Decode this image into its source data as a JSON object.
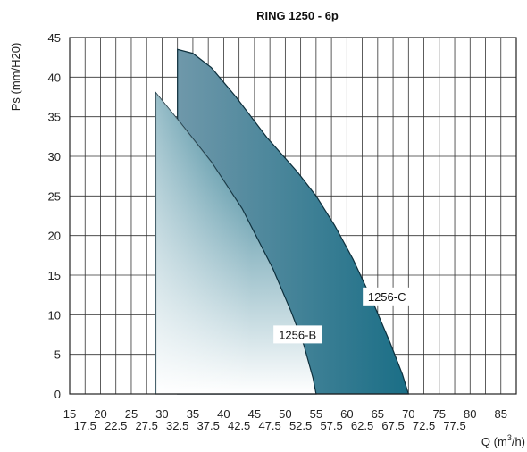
{
  "chart_data": {
    "type": "area",
    "title": "RING 1250 - 6p",
    "xlabel": "Q (m3/h)",
    "xlabel_parts": {
      "prefix": "Q (m",
      "sup": "3",
      "suffix": "/h)"
    },
    "ylabel": "Ps (mm/H20)",
    "xlim": [
      15,
      87.5
    ],
    "ylim": [
      0,
      45
    ],
    "x_ticks_major": [
      "15",
      "20",
      "25",
      "30",
      "35",
      "40",
      "45",
      "50",
      "55",
      "60",
      "65",
      "70",
      "75",
      "80",
      "85"
    ],
    "x_ticks_minor": [
      "17.5",
      "22.5",
      "27.5",
      "32.5",
      "37.5",
      "42.5",
      "47.5",
      "52.5",
      "57.5",
      "62.5",
      "67.5",
      "72.5",
      "77.5"
    ],
    "y_ticks": [
      "0",
      "5",
      "10",
      "15",
      "20",
      "25",
      "30",
      "35",
      "40",
      "45"
    ],
    "grid": true,
    "series": [
      {
        "name": "1256-B",
        "x_min": 29,
        "points": [
          [
            29,
            38
          ],
          [
            33,
            34.2
          ],
          [
            38,
            29.3
          ],
          [
            43,
            23.4
          ],
          [
            48,
            15.8
          ],
          [
            51,
            10.3
          ],
          [
            53,
            6.2
          ],
          [
            54.5,
            2.0
          ],
          [
            55,
            0
          ]
        ],
        "label_at": [
          52,
          7.4
        ],
        "fill_top": "#1a6e86",
        "fill_bottom": "#ffffff"
      },
      {
        "name": "1256-C",
        "x_min": 32.5,
        "points": [
          [
            32.5,
            43.5
          ],
          [
            35,
            43.0
          ],
          [
            38,
            41.2
          ],
          [
            42,
            37.5
          ],
          [
            47,
            32.4
          ],
          [
            52,
            28.0
          ],
          [
            55,
            25.0
          ],
          [
            58,
            21.3
          ],
          [
            61,
            17.0
          ],
          [
            64,
            12.0
          ],
          [
            67,
            6.5
          ],
          [
            69,
            2.5
          ],
          [
            70,
            0
          ]
        ],
        "label_at": [
          66.5,
          12.2
        ],
        "fill_top": "#1a6e86",
        "fill_bottom": "#6f98aa"
      }
    ]
  }
}
